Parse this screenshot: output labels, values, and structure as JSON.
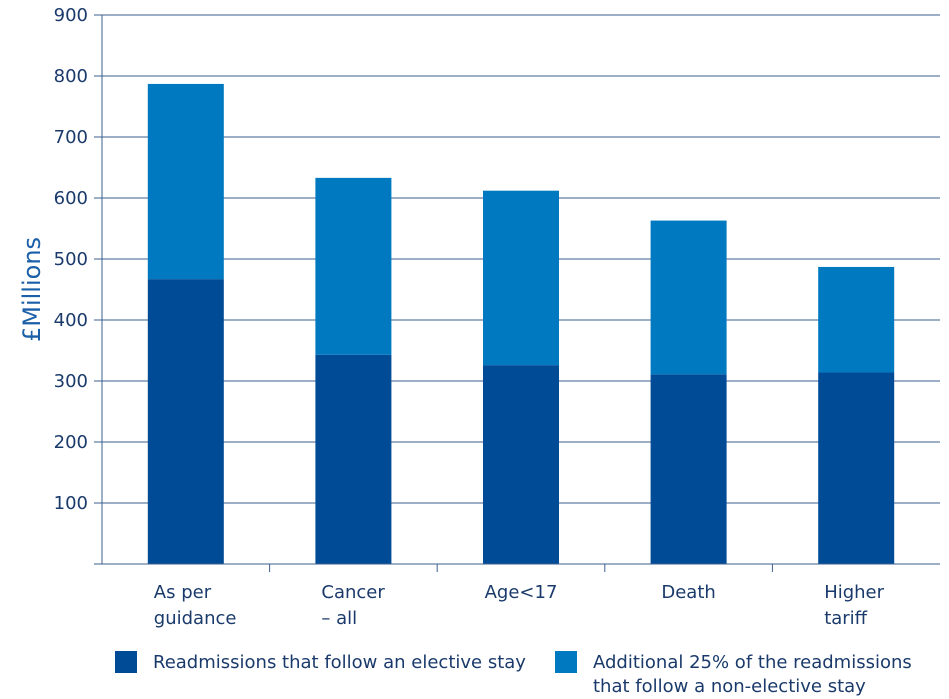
{
  "chart_data": {
    "type": "bar",
    "stacked": true,
    "categories": [
      [
        "As per",
        "guidance"
      ],
      [
        "Cancer",
        "– all"
      ],
      [
        "Age<17"
      ],
      [
        "Death"
      ],
      [
        "Higher",
        "tariff"
      ]
    ],
    "series": [
      {
        "name": "Readmissions that follow an elective stay",
        "color": "#004b96",
        "values": [
          467,
          343,
          326,
          311,
          314
        ]
      },
      {
        "name": [
          "Additional 25% of the readmissions",
          "that follow a non-elective stay"
        ],
        "color": "#0079c1",
        "values": [
          320,
          290,
          286,
          252,
          173
        ]
      }
    ],
    "ylabel": "£Millions",
    "ylim": [
      0,
      900
    ],
    "yticks": [
      "100",
      "200",
      "300",
      "400",
      "500",
      "600",
      "700",
      "800",
      "900"
    ],
    "grid": true,
    "legend_position": "bottom"
  }
}
